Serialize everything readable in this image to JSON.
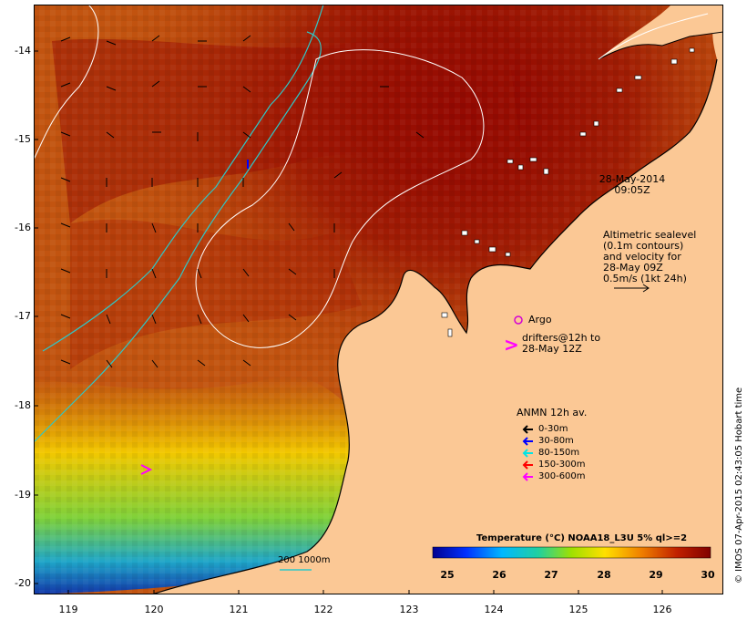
{
  "map": {
    "y_ticks": [
      "-14",
      "-15",
      "-16",
      "-17",
      "-18",
      "-19",
      "-20"
    ],
    "x_ticks": [
      "119",
      "120",
      "121",
      "122",
      "123",
      "124",
      "125",
      "126"
    ],
    "colors": {
      "land": "#fbc895",
      "sea_warm": "#8e0000",
      "sea_mid": "#c85a0e",
      "sea_cool": "#e1b000",
      "argo": "#d400d4",
      "drifter": "#ff00ff",
      "contour_200_1000": "#2ec8c8"
    }
  },
  "timestamp": {
    "date": "28-May-2014",
    "time": "09:05Z"
  },
  "altimetry_note": {
    "lines": [
      "Altimetric sealevel",
      "(0.1m contours)",
      "and velocity for",
      "28-May 09Z",
      "0.5m/s (1kt 24h)"
    ]
  },
  "argo": {
    "label": "Argo"
  },
  "drifters": {
    "symbol": ">",
    "lines": [
      "drifters@12h to",
      "28-May 12Z"
    ]
  },
  "anmn": {
    "title": "ANMN 12h av.",
    "items": [
      {
        "label": "0-30m",
        "color": "#000000"
      },
      {
        "label": "30-80m",
        "color": "#0000ff"
      },
      {
        "label": "80-150m",
        "color": "#00e5e5"
      },
      {
        "label": "150-300m",
        "color": "#ff0000"
      },
      {
        "label": "300-600m",
        "color": "#ff00ff"
      }
    ]
  },
  "colorbar": {
    "title": "Temperature (°C) NOAA18_L3U 5% ql>=2",
    "ticks": [
      "25",
      "26",
      "27",
      "28",
      "29",
      "30"
    ],
    "range": [
      25,
      30
    ]
  },
  "depth_legend": {
    "label": "200  1000m"
  },
  "credit": "© IMOS 07-Apr-2015 02:43:05 Hobart time"
}
